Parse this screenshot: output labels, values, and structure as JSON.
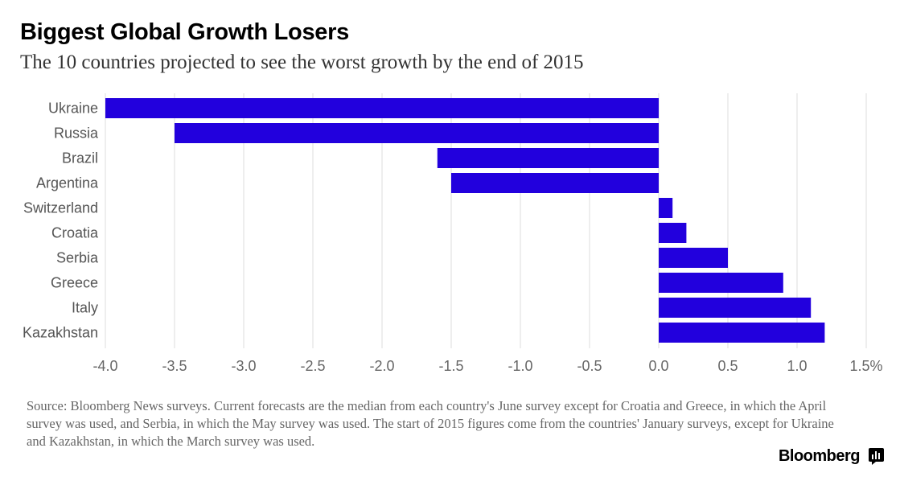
{
  "title": "Biggest Global Growth Losers",
  "subtitle": "The 10 countries projected to see the worst growth by the end of 2015",
  "footnote": "Source: Bloomberg News surveys. Current forecasts are the median from each country's June survey except for Croatia and Greece, in which the April survey was used, and Serbia, in which the May survey was used. The start of 2015 figures come from the countries' January surveys, except for Ukraine and Kazakhstan, in which the March survey was used.",
  "brand": "Bloomberg",
  "chart_data": {
    "type": "bar",
    "orientation": "horizontal",
    "categories": [
      "Ukraine",
      "Russia",
      "Brazil",
      "Argentina",
      "Switzerland",
      "Croatia",
      "Serbia",
      "Greece",
      "Italy",
      "Kazakhstan"
    ],
    "values": [
      -4.0,
      -3.5,
      -1.6,
      -1.5,
      0.1,
      0.2,
      0.5,
      0.9,
      1.1,
      1.2
    ],
    "xlim": [
      -4.0,
      1.5
    ],
    "ticks": [
      -4.0,
      -3.5,
      -3.0,
      -2.5,
      -2.0,
      -1.5,
      -1.0,
      -0.5,
      0.0,
      0.5,
      1.0,
      1.5
    ],
    "tick_labels": [
      "-4.0",
      "-3.5",
      "-3.0",
      "-2.5",
      "-2.0",
      "-1.5",
      "-1.0",
      "-0.5",
      "0.0",
      "0.5",
      "1.0",
      "1.5%"
    ],
    "bar_color": "#2200dd",
    "grid": true
  }
}
